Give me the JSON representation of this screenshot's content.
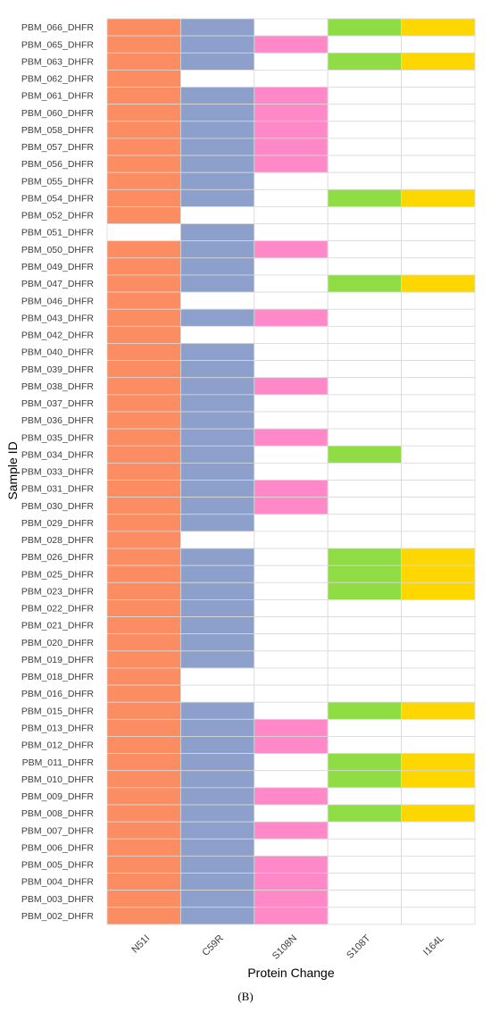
{
  "chart_data": {
    "type": "heatmap",
    "xlabel": "Protein Change",
    "ylabel": "Sample ID",
    "panel_label": "(B)",
    "categories": [
      "N51I",
      "C59R",
      "S108N",
      "S108T",
      "I164L"
    ],
    "colors": {
      "N51I": "#fc8d62",
      "C59R": "#8da0cb",
      "S108N": "#ff88c8",
      "S108T": "#8fdc44",
      "I164L": "#ffd700",
      "absent": "#ffffff",
      "grid": "#d9d9d9"
    },
    "samples": [
      {
        "id": "PBM_066_DHFR",
        "values": [
          1,
          1,
          0,
          1,
          1
        ]
      },
      {
        "id": "PBM_065_DHFR",
        "values": [
          1,
          1,
          1,
          0,
          0
        ]
      },
      {
        "id": "PBM_063_DHFR",
        "values": [
          1,
          1,
          0,
          1,
          1
        ]
      },
      {
        "id": "PBM_062_DHFR",
        "values": [
          1,
          0,
          0,
          0,
          0
        ]
      },
      {
        "id": "PBM_061_DHFR",
        "values": [
          1,
          1,
          1,
          0,
          0
        ]
      },
      {
        "id": "PBM_060_DHFR",
        "values": [
          1,
          1,
          1,
          0,
          0
        ]
      },
      {
        "id": "PBM_058_DHFR",
        "values": [
          1,
          1,
          1,
          0,
          0
        ]
      },
      {
        "id": "PBM_057_DHFR",
        "values": [
          1,
          1,
          1,
          0,
          0
        ]
      },
      {
        "id": "PBM_056_DHFR",
        "values": [
          1,
          1,
          1,
          0,
          0
        ]
      },
      {
        "id": "PBM_055_DHFR",
        "values": [
          1,
          1,
          0,
          0,
          0
        ]
      },
      {
        "id": "PBM_054_DHFR",
        "values": [
          1,
          1,
          0,
          1,
          1
        ]
      },
      {
        "id": "PBM_052_DHFR",
        "values": [
          1,
          0,
          0,
          0,
          0
        ]
      },
      {
        "id": "PBM_051_DHFR",
        "values": [
          0,
          1,
          0,
          0,
          0
        ]
      },
      {
        "id": "PBM_050_DHFR",
        "values": [
          1,
          1,
          1,
          0,
          0
        ]
      },
      {
        "id": "PBM_049_DHFR",
        "values": [
          1,
          1,
          0,
          0,
          0
        ]
      },
      {
        "id": "PBM_047_DHFR",
        "values": [
          1,
          1,
          0,
          1,
          1
        ]
      },
      {
        "id": "PBM_046_DHFR",
        "values": [
          1,
          0,
          0,
          0,
          0
        ]
      },
      {
        "id": "PBM_043_DHFR",
        "values": [
          1,
          1,
          1,
          0,
          0
        ]
      },
      {
        "id": "PBM_042_DHFR",
        "values": [
          1,
          0,
          0,
          0,
          0
        ]
      },
      {
        "id": "PBM_040_DHFR",
        "values": [
          1,
          1,
          0,
          0,
          0
        ]
      },
      {
        "id": "PBM_039_DHFR",
        "values": [
          1,
          1,
          0,
          0,
          0
        ]
      },
      {
        "id": "PBM_038_DHFR",
        "values": [
          1,
          1,
          1,
          0,
          0
        ]
      },
      {
        "id": "PBM_037_DHFR",
        "values": [
          1,
          1,
          0,
          0,
          0
        ]
      },
      {
        "id": "PBM_036_DHFR",
        "values": [
          1,
          1,
          0,
          0,
          0
        ]
      },
      {
        "id": "PBM_035_DHFR",
        "values": [
          1,
          1,
          1,
          0,
          0
        ]
      },
      {
        "id": "PBM_034_DHFR",
        "values": [
          1,
          1,
          0,
          1,
          0
        ]
      },
      {
        "id": "PBM_033_DHFR",
        "values": [
          1,
          1,
          0,
          0,
          0
        ]
      },
      {
        "id": "PBM_031_DHFR",
        "values": [
          1,
          1,
          1,
          0,
          0
        ]
      },
      {
        "id": "PBM_030_DHFR",
        "values": [
          1,
          1,
          1,
          0,
          0
        ]
      },
      {
        "id": "PBM_029_DHFR",
        "values": [
          1,
          1,
          0,
          0,
          0
        ]
      },
      {
        "id": "PBM_028_DHFR",
        "values": [
          1,
          0,
          0,
          0,
          0
        ]
      },
      {
        "id": "PBM_026_DHFR",
        "values": [
          1,
          1,
          0,
          1,
          1
        ]
      },
      {
        "id": "PBM_025_DHFR",
        "values": [
          1,
          1,
          0,
          1,
          1
        ]
      },
      {
        "id": "PBM_023_DHFR",
        "values": [
          1,
          1,
          0,
          1,
          1
        ]
      },
      {
        "id": "PBM_022_DHFR",
        "values": [
          1,
          1,
          0,
          0,
          0
        ]
      },
      {
        "id": "PBM_021_DHFR",
        "values": [
          1,
          1,
          0,
          0,
          0
        ]
      },
      {
        "id": "PBM_020_DHFR",
        "values": [
          1,
          1,
          0,
          0,
          0
        ]
      },
      {
        "id": "PBM_019_DHFR",
        "values": [
          1,
          1,
          0,
          0,
          0
        ]
      },
      {
        "id": "PBM_018_DHFR",
        "values": [
          1,
          0,
          0,
          0,
          0
        ]
      },
      {
        "id": "PBM_016_DHFR",
        "values": [
          1,
          0,
          0,
          0,
          0
        ]
      },
      {
        "id": "PBM_015_DHFR",
        "values": [
          1,
          1,
          0,
          1,
          1
        ]
      },
      {
        "id": "PBM_013_DHFR",
        "values": [
          1,
          1,
          1,
          0,
          0
        ]
      },
      {
        "id": "PBM_012_DHFR",
        "values": [
          1,
          1,
          1,
          0,
          0
        ]
      },
      {
        "id": "PBM_011_DHFR",
        "values": [
          1,
          1,
          0,
          1,
          1
        ]
      },
      {
        "id": "PBM_010_DHFR",
        "values": [
          1,
          1,
          0,
          1,
          1
        ]
      },
      {
        "id": "PBM_009_DHFR",
        "values": [
          1,
          1,
          1,
          0,
          0
        ]
      },
      {
        "id": "PBM_008_DHFR",
        "values": [
          1,
          1,
          0,
          1,
          1
        ]
      },
      {
        "id": "PBM_007_DHFR",
        "values": [
          1,
          1,
          1,
          0,
          0
        ]
      },
      {
        "id": "PBM_006_DHFR",
        "values": [
          1,
          1,
          0,
          0,
          0
        ]
      },
      {
        "id": "PBM_005_DHFR",
        "values": [
          1,
          1,
          1,
          0,
          0
        ]
      },
      {
        "id": "PBM_004_DHFR",
        "values": [
          1,
          1,
          1,
          0,
          0
        ]
      },
      {
        "id": "PBM_003_DHFR",
        "values": [
          1,
          1,
          1,
          0,
          0
        ]
      },
      {
        "id": "PBM_002_DHFR",
        "values": [
          1,
          1,
          1,
          0,
          0
        ]
      }
    ]
  }
}
